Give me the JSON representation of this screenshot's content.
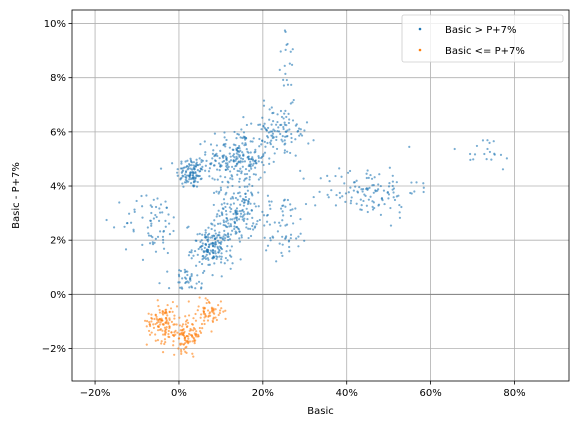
{
  "chart_data": {
    "type": "scatter",
    "xlabel": "Basic",
    "ylabel": "Basic - P+7%",
    "xlim": [
      -0.255,
      0.93
    ],
    "ylim": [
      -0.032,
      0.105
    ],
    "x_ticks": [
      -0.2,
      0,
      0.2,
      0.4,
      0.6,
      0.8
    ],
    "x_tick_labels": [
      "−20%",
      "0%",
      "20%",
      "40%",
      "60%",
      "80%"
    ],
    "y_ticks": [
      -0.02,
      0,
      0.02,
      0.04,
      0.06,
      0.08,
      0.1
    ],
    "y_tick_labels": [
      "−2%",
      "0%",
      "2%",
      "4%",
      "6%",
      "8%",
      "10%"
    ],
    "grid": true,
    "hline": 0,
    "legend_position": "top-right",
    "colors": {
      "above": "#1f77b4",
      "below": "#ff7f0e",
      "grid": "#b0b0b0",
      "zero_line": "#808080"
    },
    "series": [
      {
        "name": "Basic > P+7%",
        "clusters": [
          {
            "center": [
              0.03,
              0.045
            ],
            "spread": [
              0.03,
              0.005
            ],
            "count": 120
          },
          {
            "center": [
              0.14,
              0.05
            ],
            "spread": [
              0.06,
              0.009
            ],
            "count": 230
          },
          {
            "center": [
              0.08,
              0.017
            ],
            "spread": [
              0.04,
              0.006
            ],
            "count": 170
          },
          {
            "center": [
              0.14,
              0.03
            ],
            "spread": [
              0.04,
              0.008
            ],
            "count": 160
          },
          {
            "center": [
              0.24,
              0.06
            ],
            "spread": [
              0.06,
              0.008
            ],
            "count": 110
          },
          {
            "center": [
              0.45,
              0.038
            ],
            "spread": [
              0.1,
              0.008
            ],
            "count": 120
          },
          {
            "center": [
              -0.06,
              0.026
            ],
            "spread": [
              0.06,
              0.01
            ],
            "count": 70
          },
          {
            "center": [
              0.02,
              0.005
            ],
            "spread": [
              0.04,
              0.005
            ],
            "count": 40
          },
          {
            "center": [
              0.72,
              0.052
            ],
            "spread": [
              0.08,
              0.006
            ],
            "count": 20
          },
          {
            "center": [
              0.26,
              0.085
            ],
            "spread": [
              0.02,
              0.01
            ],
            "count": 18
          },
          {
            "center": [
              0.25,
              0.025
            ],
            "spread": [
              0.05,
              0.01
            ],
            "count": 60
          }
        ]
      },
      {
        "name": "Basic <= P+7%",
        "clusters": [
          {
            "center": [
              -0.04,
              -0.01
            ],
            "spread": [
              0.03,
              0.006
            ],
            "count": 110
          },
          {
            "center": [
              0.02,
              -0.015
            ],
            "spread": [
              0.03,
              0.005
            ],
            "count": 110
          },
          {
            "center": [
              0.07,
              -0.006
            ],
            "spread": [
              0.03,
              0.004
            ],
            "count": 60
          }
        ]
      }
    ]
  }
}
